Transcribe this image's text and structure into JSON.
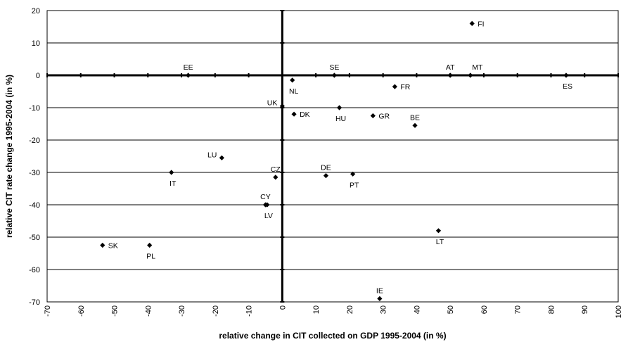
{
  "chart_data": {
    "type": "scatter",
    "title": "",
    "xlabel": "relative change in CIT collected on GDP 1995-2004 (in %)",
    "ylabel": "relative CIT rate change 1995-2004 (in %)",
    "xlim": [
      -70,
      100
    ],
    "ylim": [
      -70,
      20
    ],
    "x_ticks": [
      -70,
      -60,
      -50,
      -40,
      -30,
      -20,
      -10,
      0,
      10,
      20,
      30,
      40,
      50,
      60,
      70,
      80,
      90,
      100
    ],
    "y_ticks": [
      -70,
      -60,
      -50,
      -40,
      -30,
      -20,
      -10,
      0,
      10,
      20
    ],
    "grid": "horizontal",
    "marker": "diamond",
    "points": [
      {
        "label": "FI",
        "x": 56.5,
        "y": 16,
        "pos": "right"
      },
      {
        "label": "AT",
        "x": 50,
        "y": 0,
        "pos": "above"
      },
      {
        "label": "MT",
        "x": 56,
        "y": 0,
        "pos": "above-right"
      },
      {
        "label": "ES",
        "x": 84.5,
        "y": 0,
        "pos": "below"
      },
      {
        "label": "EE",
        "x": -28,
        "y": 0,
        "pos": "above"
      },
      {
        "label": "SE",
        "x": 15.5,
        "y": 0,
        "pos": "above"
      },
      {
        "label": "NL",
        "x": 3,
        "y": -1.5,
        "pos": "below"
      },
      {
        "label": "UK",
        "x": 0,
        "y": -9.5,
        "pos": "left"
      },
      {
        "label": "DK",
        "x": 3.5,
        "y": -12,
        "pos": "right"
      },
      {
        "label": "HU",
        "x": 17,
        "y": -10,
        "pos": "below"
      },
      {
        "label": "GR",
        "x": 27,
        "y": -12.5,
        "pos": "right"
      },
      {
        "label": "FR",
        "x": 33.5,
        "y": -3.5,
        "pos": "right"
      },
      {
        "label": "BE",
        "x": 39.5,
        "y": -15.5,
        "pos": "above"
      },
      {
        "label": "LU",
        "x": -18,
        "y": -25.5,
        "pos": "left"
      },
      {
        "label": "IT",
        "x": -33,
        "y": -30,
        "pos": "below"
      },
      {
        "label": "CZ",
        "x": -2,
        "y": -31.5,
        "pos": "above"
      },
      {
        "label": "DE",
        "x": 13,
        "y": -31,
        "pos": "above"
      },
      {
        "label": "PT",
        "x": 21,
        "y": -30.5,
        "pos": "below"
      },
      {
        "label": "CY",
        "x": -5,
        "y": -40,
        "pos": "above"
      },
      {
        "label": "LV",
        "x": -4.5,
        "y": -40,
        "pos": "below"
      },
      {
        "label": "SK",
        "x": -53.5,
        "y": -52.5,
        "pos": "right"
      },
      {
        "label": "PL",
        "x": -39.5,
        "y": -52.5,
        "pos": "below"
      },
      {
        "label": "LT",
        "x": 46.5,
        "y": -48,
        "pos": "below"
      },
      {
        "label": "IE",
        "x": 29,
        "y": -69,
        "pos": "above"
      }
    ]
  }
}
